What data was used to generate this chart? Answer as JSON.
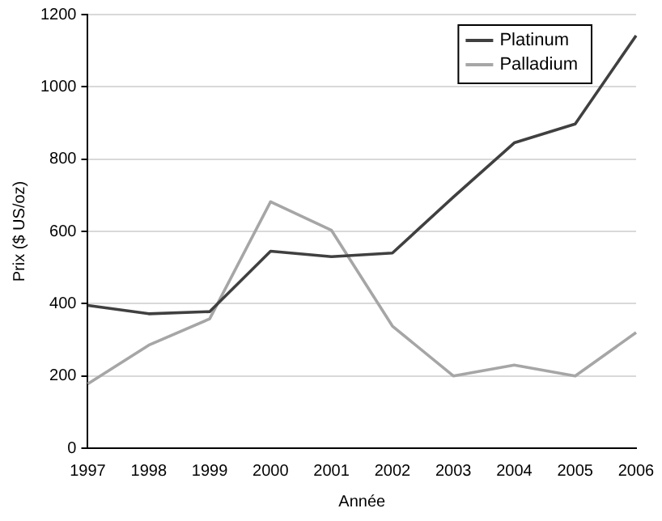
{
  "chart_data": {
    "type": "line",
    "xlabel": "Année",
    "ylabel": "Prix ($ US/oz)",
    "categories": [
      "1997",
      "1998",
      "1999",
      "2000",
      "2001",
      "2002",
      "2003",
      "2004",
      "2005",
      "2006"
    ],
    "series": [
      {
        "name": "Platinum",
        "color": "#404040",
        "values": [
          395,
          372,
          378,
          545,
          530,
          540,
          695,
          845,
          897,
          1142
        ]
      },
      {
        "name": "Palladium",
        "color": "#a6a6a6",
        "values": [
          178,
          285,
          358,
          682,
          603,
          338,
          200,
          230,
          200,
          320
        ]
      }
    ],
    "ylim": [
      0,
      1200
    ],
    "yticks": [
      0,
      200,
      400,
      600,
      800,
      1000,
      1200
    ],
    "grid": "y",
    "legend": "top right",
    "marker": "none",
    "line_style": "solid"
  }
}
